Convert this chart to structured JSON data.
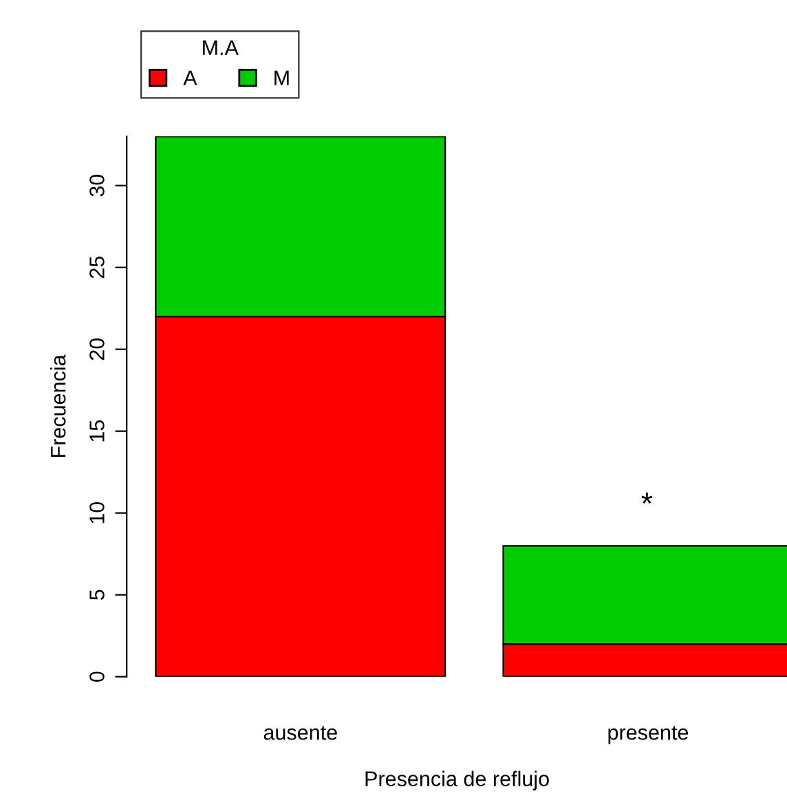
{
  "chart_data": {
    "type": "bar",
    "stacked": true,
    "categories": [
      "ausente",
      "presente"
    ],
    "series": [
      {
        "name": "A",
        "color": "#ff0000",
        "values": [
          22,
          2
        ]
      },
      {
        "name": "M",
        "color": "#00cd00",
        "values": [
          11,
          6
        ]
      }
    ],
    "xlabel": "Presencia de reflujo",
    "ylabel": "Frecuencia",
    "legend_title": "M.A",
    "legend": "top left",
    "ylim": [
      0,
      33
    ],
    "yticks": [
      0,
      5,
      10,
      15,
      20,
      25,
      30
    ],
    "grid": false,
    "annotations": [
      "*"
    ]
  }
}
